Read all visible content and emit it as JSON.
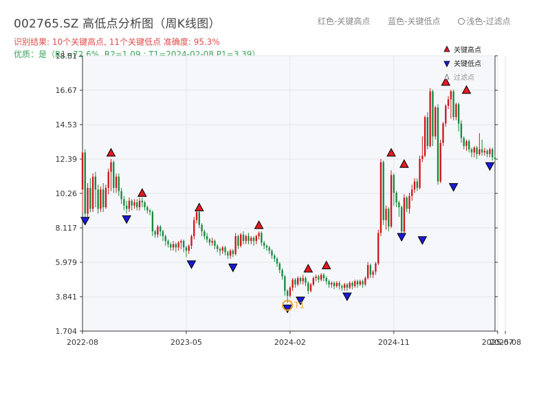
{
  "header": {
    "title": "002765.SZ 高低点分析图（周K线图）",
    "legend_red": "红色-关键高点",
    "legend_blue": "蓝色-关键低点",
    "legend_light": "浅色-过滤点",
    "result_line": "识别结果: 10个关键高点, 11个关键低点  准确度: 95.3%",
    "quality_line": "优质：是（R1=72.6%, R2=1.09 ; T1=2024-02-08 P1=3.39）"
  },
  "colors": {
    "up": "#d0161b",
    "down": "#148a3c",
    "high_marker": "#e11b22",
    "low_marker": "#1a1ad6",
    "t1_ring": "#f0a020",
    "plot_bg": "#f5f7fa",
    "title": "#444444",
    "result": "#e04b4b",
    "quality": "#3aa35a"
  },
  "chart_data": {
    "type": "candlestick",
    "ylim": [
      1.704,
      18.81
    ],
    "yticks": [
      "1.704",
      "3.841",
      "5.979",
      "8.117",
      "10.26",
      "12.39",
      "14.53",
      "16.67",
      "18.81"
    ],
    "xticks": [
      {
        "label": "2022-08",
        "index": 0
      },
      {
        "label": "2023-05",
        "index": 40
      },
      {
        "label": "2024-02",
        "index": 80
      },
      {
        "label": "2024-11",
        "index": 120
      },
      {
        "label": "2025-07",
        "index": 160
      },
      {
        "label": "2025-08",
        "index": 163
      }
    ],
    "grid": true,
    "legend": {
      "position": "top-right",
      "entries": [
        {
          "label": "关键高点",
          "kind": "high"
        },
        {
          "label": "关键低点",
          "kind": "low"
        },
        {
          "label": "过滤点",
          "kind": "filtered"
        }
      ]
    },
    "t1_label": "T1",
    "keypoints_high": [
      {
        "index": 11,
        "price": 12.4
      },
      {
        "index": 23,
        "price": 9.9
      },
      {
        "index": 45,
        "price": 9.0
      },
      {
        "index": 68,
        "price": 7.9
      },
      {
        "index": 87,
        "price": 5.2
      },
      {
        "index": 94,
        "price": 5.4
      },
      {
        "index": 119,
        "price": 12.4
      },
      {
        "index": 124,
        "price": 11.7
      },
      {
        "index": 140,
        "price": 16.8
      },
      {
        "index": 148,
        "price": 16.3
      }
    ],
    "keypoints_low": [
      {
        "index": 1,
        "price": 8.9
      },
      {
        "index": 17,
        "price": 9.0
      },
      {
        "index": 42,
        "price": 6.2
      },
      {
        "index": 58,
        "price": 6.0
      },
      {
        "index": 79,
        "price": 3.45
      },
      {
        "index": 84,
        "price": 3.95
      },
      {
        "index": 102,
        "price": 4.2
      },
      {
        "index": 123,
        "price": 7.9
      },
      {
        "index": 131,
        "price": 7.7
      },
      {
        "index": 143,
        "price": 11.0
      },
      {
        "index": 157,
        "price": 12.3
      }
    ],
    "t1": {
      "index": 79,
      "price": 3.3
    },
    "candles": [
      [
        10.5,
        12.8,
        9.1,
        12.9
      ],
      [
        12.8,
        9.0,
        8.7,
        13.0
      ],
      [
        9.0,
        10.6,
        8.8,
        10.9
      ],
      [
        10.6,
        9.3,
        9.1,
        11.2
      ],
      [
        9.3,
        11.3,
        9.1,
        11.5
      ],
      [
        11.3,
        10.5,
        9.4,
        11.6
      ],
      [
        10.5,
        9.3,
        9.0,
        10.8
      ],
      [
        9.3,
        10.5,
        9.1,
        10.7
      ],
      [
        10.5,
        9.4,
        9.1,
        10.9
      ],
      [
        9.4,
        10.6,
        9.3,
        10.8
      ],
      [
        10.6,
        11.6,
        10.2,
        11.8
      ],
      [
        11.6,
        12.2,
        10.4,
        12.4
      ],
      [
        12.2,
        10.6,
        10.3,
        12.3
      ],
      [
        10.6,
        11.3,
        10.3,
        11.5
      ],
      [
        11.3,
        10.4,
        10.1,
        11.5
      ],
      [
        10.4,
        9.9,
        9.6,
        10.6
      ],
      [
        9.9,
        9.5,
        9.2,
        10.1
      ],
      [
        9.5,
        9.3,
        9.0,
        9.8
      ],
      [
        9.3,
        9.8,
        9.1,
        10.0
      ],
      [
        9.8,
        9.5,
        9.2,
        9.9
      ],
      [
        9.5,
        9.7,
        9.3,
        9.9
      ],
      [
        9.7,
        9.4,
        9.2,
        9.9
      ],
      [
        9.4,
        9.8,
        9.2,
        10.0
      ],
      [
        9.8,
        9.7,
        9.4,
        10.0
      ],
      [
        9.7,
        9.4,
        9.2,
        9.8
      ],
      [
        9.4,
        9.2,
        9.0,
        9.5
      ],
      [
        9.2,
        9.1,
        8.9,
        9.3
      ],
      [
        9.1,
        7.9,
        7.6,
        9.2
      ],
      [
        7.9,
        7.7,
        7.5,
        8.0
      ],
      [
        7.7,
        8.2,
        7.5,
        8.3
      ],
      [
        8.2,
        7.9,
        7.6,
        8.3
      ],
      [
        7.9,
        7.6,
        7.3,
        8.0
      ],
      [
        7.6,
        7.3,
        7.0,
        7.7
      ],
      [
        7.3,
        7.1,
        6.9,
        7.4
      ],
      [
        7.1,
        6.9,
        6.7,
        7.2
      ],
      [
        6.9,
        7.1,
        6.7,
        7.3
      ],
      [
        7.1,
        6.9,
        6.6,
        7.2
      ],
      [
        6.9,
        7.2,
        6.7,
        7.3
      ],
      [
        7.2,
        7.3,
        6.8,
        7.4
      ],
      [
        7.3,
        6.9,
        6.6,
        7.4
      ],
      [
        6.9,
        6.7,
        6.3,
        7.0
      ],
      [
        6.7,
        7.0,
        6.5,
        7.1
      ],
      [
        7.0,
        7.6,
        6.8,
        7.7
      ],
      [
        7.6,
        8.6,
        7.4,
        8.8
      ],
      [
        8.6,
        9.1,
        8.4,
        9.2
      ],
      [
        9.1,
        8.3,
        8.1,
        9.2
      ],
      [
        8.3,
        7.9,
        7.6,
        8.4
      ],
      [
        7.9,
        7.6,
        7.4,
        8.0
      ],
      [
        7.6,
        7.4,
        7.2,
        7.8
      ],
      [
        7.4,
        7.2,
        7.0,
        7.5
      ],
      [
        7.2,
        7.3,
        7.0,
        7.5
      ],
      [
        7.3,
        7.0,
        6.8,
        7.4
      ],
      [
        7.0,
        6.8,
        6.6,
        7.1
      ],
      [
        6.8,
        6.7,
        6.4,
        6.9
      ],
      [
        6.7,
        6.9,
        6.5,
        7.0
      ],
      [
        6.9,
        6.6,
        6.4,
        7.0
      ],
      [
        6.6,
        6.4,
        6.2,
        6.7
      ],
      [
        6.4,
        6.7,
        6.2,
        6.8
      ],
      [
        6.7,
        6.5,
        6.3,
        6.8
      ],
      [
        6.5,
        7.6,
        6.4,
        7.8
      ],
      [
        7.6,
        7.0,
        6.8,
        7.7
      ],
      [
        7.0,
        7.7,
        6.9,
        7.8
      ],
      [
        7.7,
        7.3,
        7.1,
        7.9
      ],
      [
        7.3,
        7.6,
        7.1,
        7.7
      ],
      [
        7.6,
        7.3,
        7.1,
        7.8
      ],
      [
        7.3,
        7.5,
        7.1,
        7.6
      ],
      [
        7.5,
        7.3,
        7.0,
        7.6
      ],
      [
        7.3,
        7.6,
        7.1,
        7.7
      ],
      [
        7.6,
        7.8,
        7.4,
        7.9
      ],
      [
        7.8,
        7.2,
        7.0,
        7.9
      ],
      [
        7.2,
        7.0,
        6.8,
        7.3
      ],
      [
        7.0,
        6.9,
        6.7,
        7.1
      ],
      [
        6.9,
        6.7,
        6.5,
        7.0
      ],
      [
        6.7,
        6.4,
        6.2,
        6.8
      ],
      [
        6.4,
        6.2,
        6.0,
        6.5
      ],
      [
        6.2,
        5.9,
        5.7,
        6.3
      ],
      [
        5.9,
        5.5,
        5.3,
        6.0
      ],
      [
        5.5,
        5.1,
        4.9,
        5.6
      ],
      [
        5.1,
        4.2,
        3.9,
        5.2
      ],
      [
        4.2,
        3.9,
        3.45,
        4.3
      ],
      [
        3.9,
        4.4,
        3.8,
        4.5
      ],
      [
        4.4,
        4.9,
        4.2,
        5.0
      ],
      [
        4.9,
        4.6,
        4.4,
        5.0
      ],
      [
        4.6,
        5.0,
        4.5,
        5.1
      ],
      [
        5.0,
        4.8,
        4.6,
        5.1
      ],
      [
        4.8,
        5.0,
        4.6,
        5.2
      ],
      [
        5.0,
        4.7,
        4.5,
        5.1
      ],
      [
        4.7,
        4.2,
        4.0,
        4.8
      ],
      [
        4.2,
        4.6,
        4.1,
        4.7
      ],
      [
        4.6,
        5.0,
        4.5,
        5.1
      ],
      [
        5.0,
        5.1,
        4.8,
        5.2
      ],
      [
        5.1,
        4.9,
        4.7,
        5.2
      ],
      [
        4.9,
        5.2,
        4.8,
        5.3
      ],
      [
        5.2,
        5.0,
        4.8,
        5.3
      ],
      [
        5.0,
        4.8,
        4.6,
        5.1
      ],
      [
        4.8,
        4.6,
        4.4,
        4.9
      ],
      [
        4.6,
        4.7,
        4.4,
        4.8
      ],
      [
        4.7,
        4.5,
        4.3,
        4.8
      ],
      [
        4.5,
        4.7,
        4.4,
        4.8
      ],
      [
        4.7,
        4.5,
        4.3,
        4.8
      ],
      [
        4.5,
        4.4,
        4.2,
        4.6
      ],
      [
        4.4,
        4.6,
        4.2,
        4.7
      ],
      [
        4.6,
        4.4,
        4.2,
        4.7
      ],
      [
        4.4,
        4.7,
        4.3,
        4.8
      ],
      [
        4.7,
        4.5,
        4.3,
        4.8
      ],
      [
        4.5,
        4.8,
        4.4,
        4.9
      ],
      [
        4.8,
        4.6,
        4.4,
        4.9
      ],
      [
        4.6,
        4.8,
        4.5,
        4.9
      ],
      [
        4.8,
        4.6,
        4.4,
        4.9
      ],
      [
        4.6,
        5.0,
        4.5,
        5.1
      ],
      [
        5.0,
        5.8,
        4.9,
        6.0
      ],
      [
        5.8,
        5.2,
        5.0,
        5.9
      ],
      [
        5.2,
        5.4,
        5.0,
        5.5
      ],
      [
        5.4,
        5.9,
        5.2,
        6.0
      ],
      [
        5.9,
        7.8,
        5.8,
        8.0
      ],
      [
        7.8,
        12.2,
        7.6,
        12.4
      ],
      [
        12.2,
        8.6,
        8.3,
        12.3
      ],
      [
        8.6,
        9.3,
        8.0,
        9.5
      ],
      [
        9.3,
        8.2,
        7.9,
        9.4
      ],
      [
        8.2,
        11.4,
        8.1,
        11.7
      ],
      [
        11.4,
        10.3,
        9.5,
        11.5
      ],
      [
        10.3,
        9.7,
        9.4,
        10.4
      ],
      [
        9.7,
        9.4,
        8.8,
        9.8
      ],
      [
        9.4,
        7.9,
        7.7,
        9.5
      ],
      [
        7.9,
        10.0,
        7.8,
        10.2
      ],
      [
        10.0,
        9.3,
        9.1,
        10.1
      ],
      [
        9.3,
        10.1,
        9.0,
        10.3
      ],
      [
        10.1,
        10.5,
        9.8,
        10.8
      ],
      [
        10.5,
        11.0,
        10.3,
        11.2
      ],
      [
        11.0,
        10.6,
        10.4,
        11.2
      ],
      [
        10.6,
        12.4,
        10.5,
        12.6
      ],
      [
        12.4,
        12.6,
        12.2,
        13.8
      ],
      [
        12.6,
        15.0,
        12.5,
        15.1
      ],
      [
        15.0,
        13.2,
        13.0,
        15.3
      ],
      [
        13.2,
        16.6,
        13.1,
        16.8
      ],
      [
        16.6,
        13.8,
        13.2,
        16.7
      ],
      [
        13.8,
        15.6,
        13.6,
        15.7
      ],
      [
        15.6,
        11.0,
        10.8,
        15.8
      ],
      [
        11.0,
        13.4,
        10.9,
        13.6
      ],
      [
        13.4,
        14.6,
        13.2,
        14.7
      ],
      [
        14.6,
        15.7,
        14.4,
        15.8
      ],
      [
        15.7,
        16.1,
        15.5,
        16.3
      ],
      [
        16.1,
        16.6,
        14.9,
        16.7
      ],
      [
        16.6,
        15.0,
        14.8,
        16.7
      ],
      [
        15.0,
        15.8,
        14.8,
        15.9
      ],
      [
        15.8,
        14.6,
        14.1,
        15.9
      ],
      [
        14.6,
        13.7,
        13.4,
        14.8
      ],
      [
        13.7,
        13.2,
        13.0,
        13.8
      ],
      [
        13.2,
        13.5,
        12.9,
        13.6
      ],
      [
        13.5,
        13.0,
        12.8,
        13.6
      ],
      [
        13.0,
        12.8,
        12.5,
        13.1
      ],
      [
        12.8,
        13.1,
        12.5,
        13.2
      ],
      [
        13.1,
        12.7,
        12.4,
        13.2
      ],
      [
        12.7,
        13.0,
        12.6,
        14.0
      ],
      [
        13.0,
        12.8,
        12.6,
        13.6
      ],
      [
        12.8,
        12.9,
        12.6,
        13.1
      ],
      [
        12.9,
        12.7,
        12.5,
        13.0
      ],
      [
        12.7,
        13.0,
        12.5,
        13.1
      ],
      [
        13.0,
        12.5,
        12.3,
        13.1
      ],
      [
        12.5,
        12.4,
        12.3,
        12.6
      ]
    ]
  }
}
